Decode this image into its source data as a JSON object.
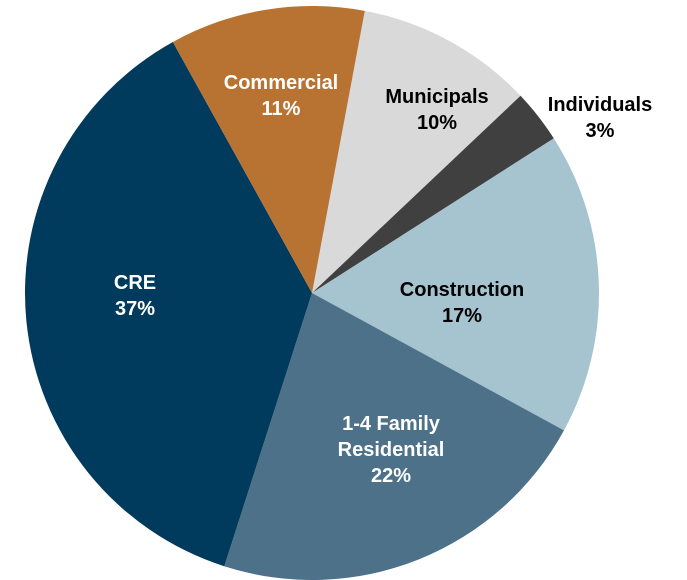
{
  "chart_data": {
    "type": "pie",
    "categories": [
      "Municipals",
      "Individuals",
      "Construction",
      "1-4 Family Residential",
      "CRE",
      "Commercial"
    ],
    "values": [
      10,
      3,
      17,
      22,
      37,
      11
    ],
    "value_labels": [
      "10%",
      "3%",
      "17%",
      "22%",
      "37%",
      "11%"
    ],
    "colors": [
      "#d9d9d9",
      "#404040",
      "#a5c4d0",
      "#4d7189",
      "#003a5c",
      "#b87333"
    ],
    "label_colors": [
      "#000000",
      "#000000",
      "#000000",
      "#ffffff",
      "#ffffff",
      "#ffffff"
    ]
  }
}
